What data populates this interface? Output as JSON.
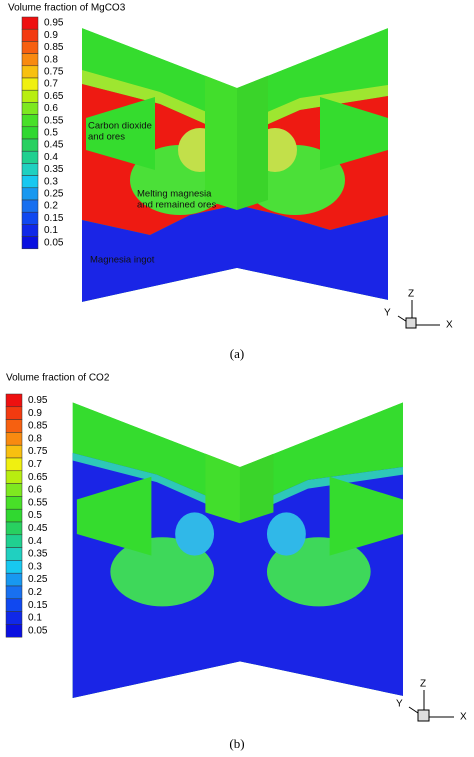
{
  "figures": [
    {
      "legend": {
        "title": "Volume fraction of MgCO3",
        "levels": [
          0.95,
          0.9,
          0.85,
          0.8,
          0.75,
          0.7,
          0.65,
          0.6,
          0.55,
          0.5,
          0.45,
          0.4,
          0.35,
          0.3,
          0.25,
          0.2,
          0.15,
          0.1,
          0.05
        ]
      },
      "annotations": [
        [
          "Carbon dioxide",
          "and ores"
        ],
        [
          "Melting magnesia",
          "and remained ores"
        ],
        [
          "Magnesia ingot"
        ]
      ],
      "axes": [
        "Z",
        "Y",
        "X"
      ],
      "caption": "(a)"
    },
    {
      "legend": {
        "title": "Volume fraction of CO2",
        "levels": [
          0.95,
          0.9,
          0.85,
          0.8,
          0.75,
          0.7,
          0.65,
          0.6,
          0.55,
          0.5,
          0.45,
          0.4,
          0.35,
          0.3,
          0.25,
          0.2,
          0.15,
          0.1,
          0.05
        ]
      },
      "axes": [
        "Z",
        "Y",
        "X"
      ],
      "caption": "(b)"
    }
  ]
}
